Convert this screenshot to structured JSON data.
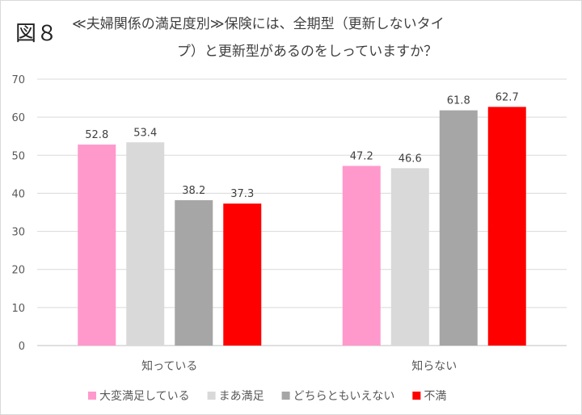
{
  "figure_label": "図８",
  "chart_data": {
    "type": "bar",
    "title_line1": "≪夫婦関係の満足度別≫保険には、全期型（更新しないタイ",
    "title_line2": "プ）と更新型があるのをしっていますか？",
    "categories": [
      "知っている",
      "知らない"
    ],
    "series": [
      {
        "name": "大変満足している",
        "color": "#ff99cc",
        "values": [
          52.8,
          47.2
        ]
      },
      {
        "name": "まあ満足",
        "color": "#d9d9d9",
        "values": [
          53.4,
          46.6
        ]
      },
      {
        "name": "どちらともいえない",
        "color": "#a6a6a6",
        "values": [
          38.2,
          61.8
        ]
      },
      {
        "name": "不満",
        "color": "#ff0000",
        "values": [
          37.3,
          62.7
        ]
      }
    ],
    "ylim": [
      0,
      70
    ],
    "yticks": [
      0,
      10,
      20,
      30,
      40,
      50,
      60,
      70
    ],
    "grid": true,
    "legend": "bottom"
  }
}
